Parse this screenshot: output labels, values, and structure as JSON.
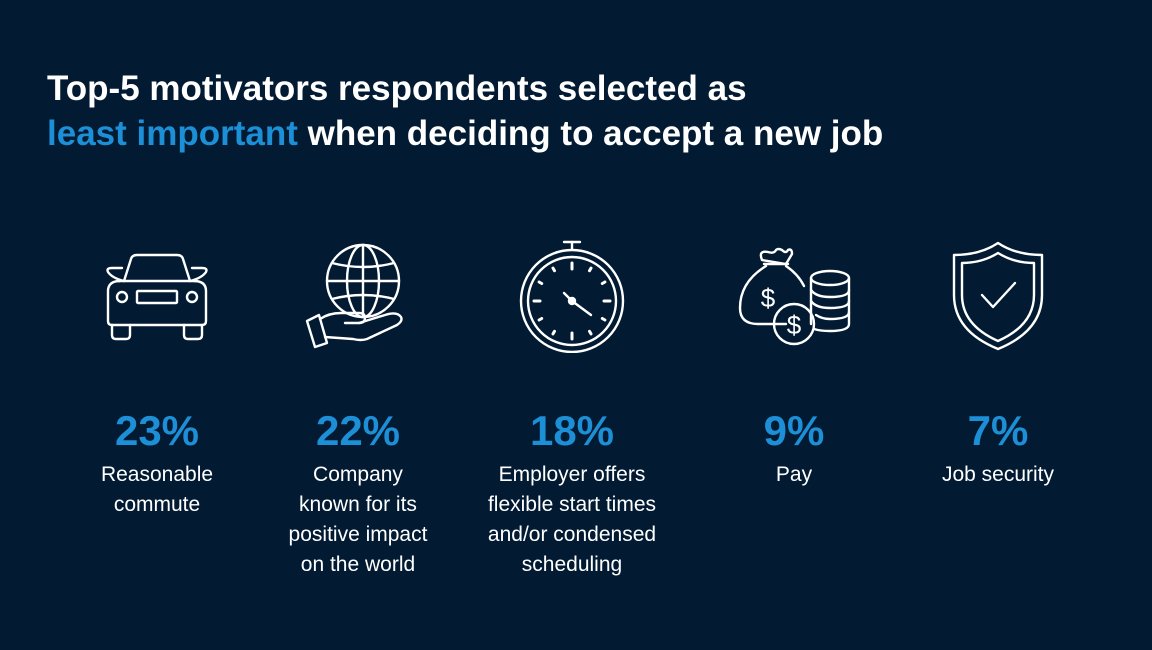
{
  "title": {
    "line1": "Top-5 motivators respondents selected as",
    "accent": "least important",
    "line2_rest": " when deciding to accept a new job"
  },
  "colors": {
    "background": "#021b33",
    "accent": "#1d8fd6",
    "text": "#ffffff"
  },
  "items": [
    {
      "icon": "car-icon",
      "percent": "23%",
      "label": "Reasonable\ncommute"
    },
    {
      "icon": "globe-hand-icon",
      "percent": "22%",
      "label": "Company\nknown for its\npositive impact\non the world"
    },
    {
      "icon": "stopwatch-icon",
      "percent": "18%",
      "label": "Employer offers\nflexible start times\nand/or condensed\nscheduling"
    },
    {
      "icon": "money-bag-coins-icon",
      "percent": "9%",
      "label": "Pay"
    },
    {
      "icon": "shield-check-icon",
      "percent": "7%",
      "label": "Job security"
    }
  ]
}
